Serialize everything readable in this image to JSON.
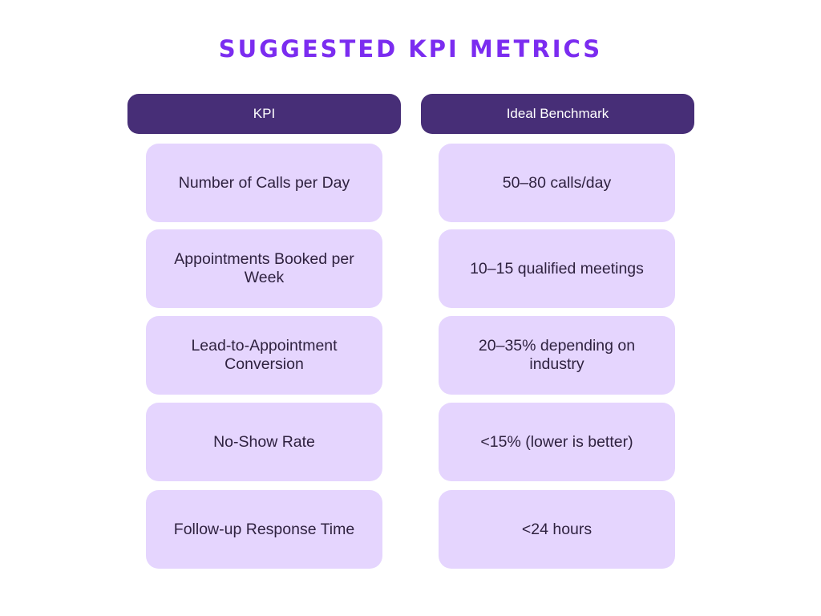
{
  "title": "SUGGESTED KPI METRICS",
  "headers": {
    "kpi": "KPI",
    "benchmark": "Ideal Benchmark"
  },
  "rows": [
    {
      "kpi": "Number of Calls per Day",
      "benchmark": "50–80 calls/day"
    },
    {
      "kpi": "Appointments Booked per Week",
      "benchmark": "10–15 qualified meetings"
    },
    {
      "kpi": "Lead-to-Appointment Conversion",
      "benchmark": "20–35% depending on industry"
    },
    {
      "kpi": "No-Show Rate",
      "benchmark": "<15% (lower is better)"
    },
    {
      "kpi": "Follow-up Response Time",
      "benchmark": "<24 hours"
    }
  ],
  "colors": {
    "title": "#7b2cf0",
    "header_bg": "#472e77",
    "cell_bg": "#e5d5fe",
    "cell_text": "#2f2240"
  }
}
